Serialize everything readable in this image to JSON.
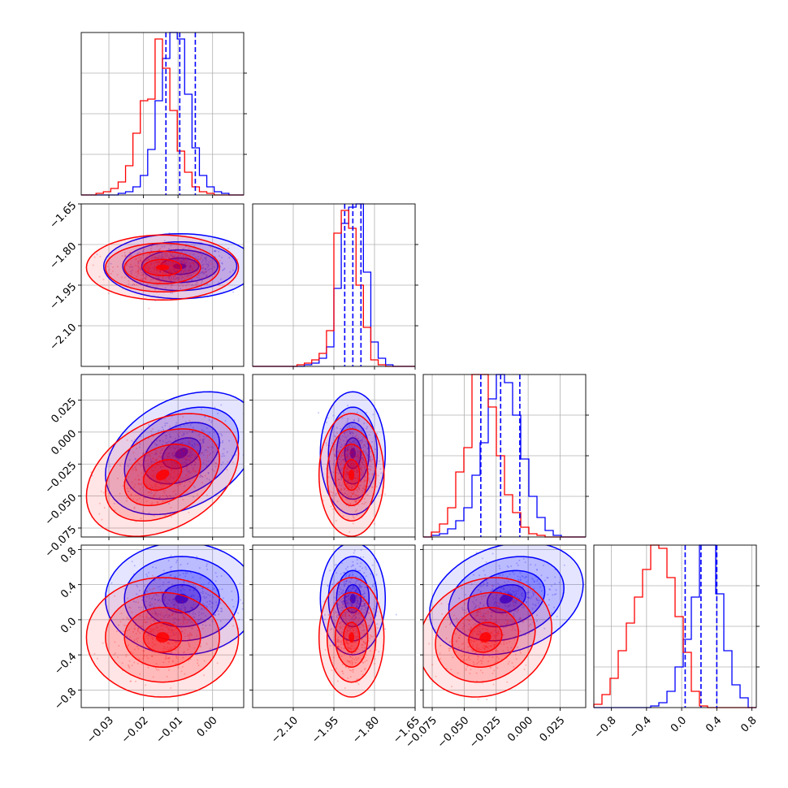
{
  "chart_data": {
    "type": "corner",
    "grid": true,
    "series": [
      {
        "name": "",
        "color": "#0000ff"
      },
      {
        "name": "",
        "color": "#ff0000"
      }
    ],
    "parameters": [
      {
        "range": [
          -0.038,
          0.009
        ],
        "ticks": [
          -0.03,
          -0.02,
          -0.01,
          0.0
        ],
        "tick_labels": [
          "−0.03",
          "−0.02",
          "−0.01",
          "0.00"
        ]
      },
      {
        "range": [
          -2.25,
          -1.65
        ],
        "ticks": [
          -2.1,
          -1.95,
          -1.8,
          -1.65
        ],
        "tick_labels": [
          "−2.10",
          "−1.95",
          "−1.80",
          "−1.65"
        ]
      },
      {
        "range": [
          -0.082,
          0.045
        ],
        "ticks": [
          -0.075,
          -0.05,
          -0.025,
          0.0,
          0.025
        ],
        "tick_labels": [
          "−0.075",
          "−0.050",
          "−0.025",
          "0.000",
          "0.025"
        ]
      },
      {
        "range": [
          -1.0,
          0.85
        ],
        "ticks": [
          -0.8,
          -0.4,
          0.0,
          0.4,
          0.8
        ],
        "tick_labels": [
          "−0.8",
          "−0.4",
          "0.0",
          "0.4",
          "0.8"
        ]
      }
    ],
    "quantiles": [
      [
        -0.0135,
        -0.0095,
        -0.005
      ],
      [
        -1.91,
        -1.88,
        -1.85
      ],
      [
        -0.037,
        -0.0215,
        -0.0065
      ],
      [
        0.04,
        0.22,
        0.4
      ]
    ],
    "histograms": [
      {
        "bins": [
          -0.038,
          0.009,
          22
        ],
        "series": [
          [
            0,
            0,
            0,
            0,
            0,
            1,
            2,
            5,
            12,
            28,
            58,
            84,
            100,
            96,
            62,
            29,
            12,
            5,
            2,
            1,
            0,
            0
          ],
          [
            0,
            0,
            1,
            2,
            4,
            8,
            18,
            38,
            58,
            59,
            96,
            78,
            52,
            27,
            14,
            5,
            2,
            1,
            0,
            0,
            0,
            0
          ]
        ]
      },
      {
        "bins": [
          -2.25,
          -1.65,
          22
        ],
        "series": [
          [
            0,
            0,
            0,
            0,
            0,
            0,
            0,
            1,
            2,
            5,
            12,
            48,
            88,
            98,
            100,
            58,
            15,
            5,
            1,
            0,
            0,
            0
          ],
          [
            0,
            0,
            0,
            0,
            0,
            0,
            1,
            2,
            4,
            8,
            22,
            82,
            96,
            85,
            50,
            24,
            4,
            1,
            0,
            0,
            0,
            0
          ]
        ]
      },
      {
        "bins": [
          -0.082,
          0.045,
          20
        ],
        "series": [
          [
            0,
            1,
            2,
            5,
            10,
            18,
            38,
            58,
            85,
            100,
            95,
            75,
            48,
            25,
            12,
            4,
            1,
            0,
            0,
            0
          ],
          [
            0,
            3,
            8,
            18,
            40,
            55,
            100,
            100,
            80,
            50,
            26,
            15,
            6,
            2,
            1,
            0,
            0,
            0,
            0,
            0
          ]
        ]
      },
      {
        "bins": [
          -1.0,
          0.85,
          20
        ],
        "series": [
          [
            0,
            0,
            0,
            0,
            0,
            0,
            0,
            1,
            3,
            10,
            25,
            42,
            68,
            100,
            100,
            70,
            35,
            14,
            6,
            0
          ],
          [
            2,
            8,
            18,
            35,
            52,
            68,
            85,
            100,
            98,
            80,
            56,
            34,
            10,
            1,
            0,
            0,
            0,
            0,
            0,
            0
          ]
        ]
      }
    ],
    "gaussians_2d": [
      [
        {
          "mean": [
            -0.0095,
            -1.88
          ],
          "sd": [
            0.0055,
            0.03
          ],
          "rho": 0.0,
          "n_scatter": 380
        },
        {
          "mean": [
            -0.0145,
            -1.885
          ],
          "sd": [
            0.0055,
            0.03
          ],
          "rho": 0.0,
          "n_scatter": 380
        }
      ],
      [
        {
          "mean": [
            -0.009,
            -0.0165
          ],
          "sd": [
            0.0055,
            0.012
          ],
          "rho": 0.35,
          "n_scatter": 380
        },
        {
          "mean": [
            -0.0145,
            -0.0335
          ],
          "sd": [
            0.0055,
            0.012
          ],
          "rho": 0.35,
          "n_scatter": 380
        },
        {
          "mean": [
            -1.88,
            -0.0165
          ],
          "sd": [
            0.03,
            0.012
          ],
          "rho": 0.0,
          "n_scatter": 380
        },
        {
          "mean": [
            -1.885,
            -0.0335
          ],
          "sd": [
            0.03,
            0.012
          ],
          "rho": 0.0,
          "n_scatter": 380
        }
      ],
      [
        {
          "mean": [
            -0.009,
            0.24
          ],
          "sd": [
            0.0055,
            0.16
          ],
          "rho": 0.0,
          "n_scatter": 380
        },
        {
          "mean": [
            -0.0145,
            -0.2
          ],
          "sd": [
            0.0055,
            0.17
          ],
          "rho": 0.0,
          "n_scatter": 380
        },
        {
          "mean": [
            -1.88,
            0.24
          ],
          "sd": [
            0.03,
            0.16
          ],
          "rho": 0.0,
          "n_scatter": 380
        },
        {
          "mean": [
            -1.885,
            -0.2
          ],
          "sd": [
            0.03,
            0.17
          ],
          "rho": 0.0,
          "n_scatter": 380
        },
        {
          "mean": [
            -0.017,
            0.24
          ],
          "sd": [
            0.015,
            0.16
          ],
          "rho": 0.25,
          "n_scatter": 380
        },
        {
          "mean": [
            -0.0335,
            -0.2
          ],
          "sd": [
            0.013,
            0.17
          ],
          "rho": 0.15,
          "n_scatter": 380
        }
      ]
    ]
  }
}
